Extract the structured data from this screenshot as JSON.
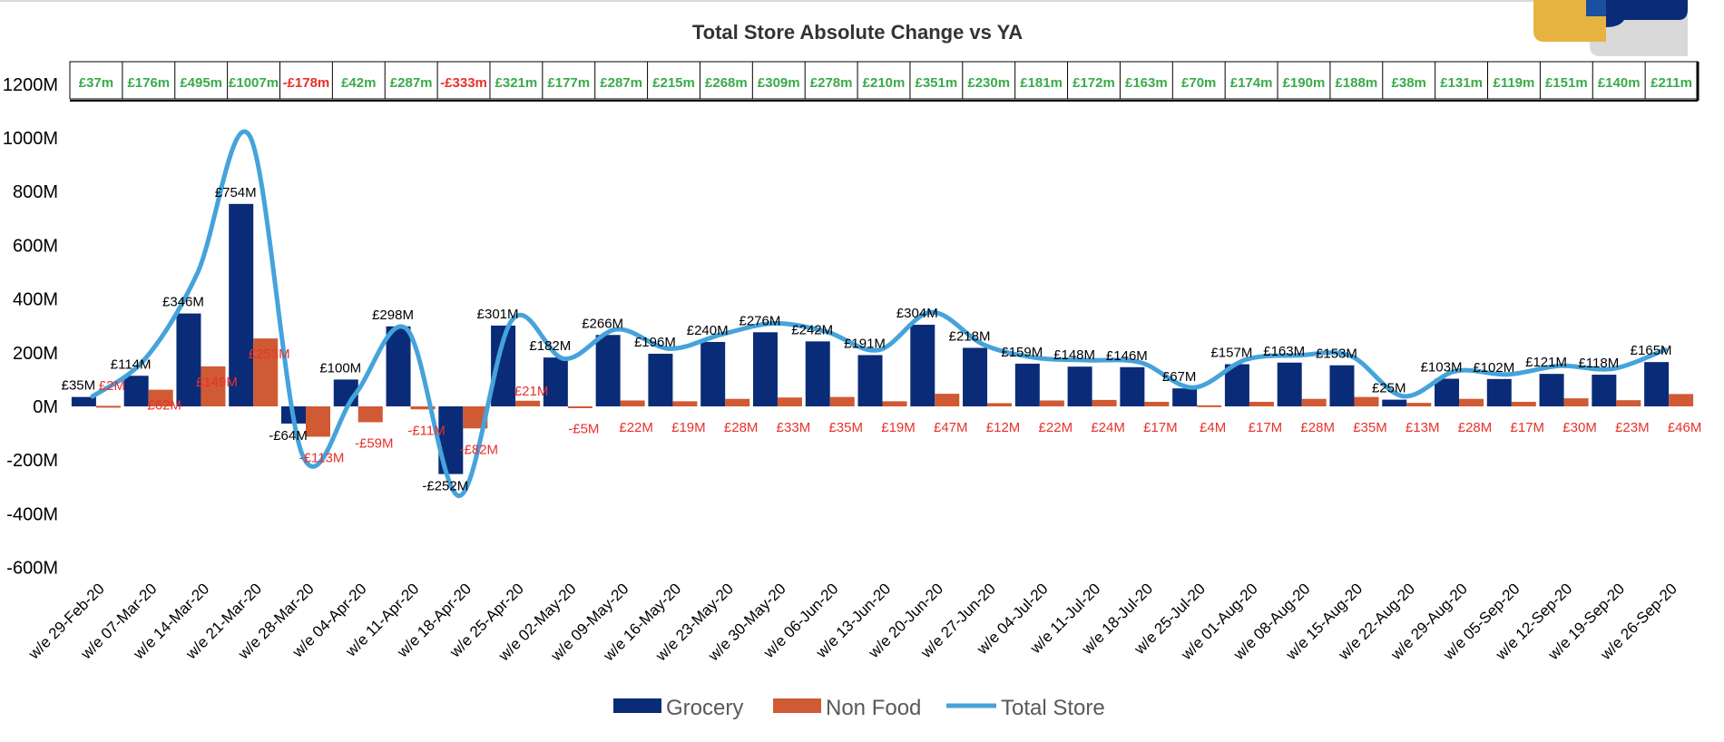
{
  "colors": {
    "grocery": "#0a2b77",
    "nonfood": "#cf5a34",
    "total": "#45a3db",
    "positive_text": "#3aaa4a",
    "negative_text": "#e8312b"
  },
  "chart_data": {
    "type": "bar",
    "title": "Total Store Absolute Change vs YA",
    "xlabel": "",
    "ylabel": "",
    "ylim": [
      -600,
      1200
    ],
    "yticks": [
      "-600M",
      "-400M",
      "-200M",
      "0M",
      "200M",
      "400M",
      "600M",
      "800M",
      "1000M",
      "1200M"
    ],
    "yticks_values": [
      -600,
      -400,
      -200,
      0,
      200,
      400,
      600,
      800,
      1000,
      1200
    ],
    "categories": [
      "w/e 29-Feb-20",
      "w/e 07-Mar-20",
      "w/e 14-Mar-20",
      "w/e 21-Mar-20",
      "w/e 28-Mar-20",
      "w/e 04-Apr-20",
      "w/e 11-Apr-20",
      "w/e 18-Apr-20",
      "w/e 25-Apr-20",
      "w/e 02-May-20",
      "w/e 09-May-20",
      "w/e 16-May-20",
      "w/e 23-May-20",
      "w/e 30-May-20",
      "w/e 06-Jun-20",
      "w/e 13-Jun-20",
      "w/e 20-Jun-20",
      "w/e 27-Jun-20",
      "w/e 04-Jul-20",
      "w/e 11-Jul-20",
      "w/e 18-Jul-20",
      "w/e 25-Jul-20",
      "w/e 01-Aug-20",
      "w/e 08-Aug-20",
      "w/e 15-Aug-20",
      "w/e 22-Aug-20",
      "w/e 29-Aug-20",
      "w/e 05-Sep-20",
      "w/e 12-Sep-20",
      "w/e 19-Sep-20",
      "w/e 26-Sep-20"
    ],
    "series": [
      {
        "name": "Grocery",
        "values": [
          35,
          114,
          346,
          754,
          -64,
          100,
          298,
          -252,
          301,
          182,
          266,
          196,
          240,
          276,
          242,
          191,
          304,
          218,
          159,
          148,
          146,
          67,
          157,
          163,
          153,
          25,
          103,
          102,
          121,
          118,
          165
        ],
        "labels": [
          "£35M",
          "£114M",
          "£346M",
          "£754M",
          "-£64M",
          "£100M",
          "£298M",
          "-£252M",
          "£301M",
          "£182M",
          "£266M",
          "£196M",
          "£240M",
          "£276M",
          "£242M",
          "£191M",
          "£304M",
          "£218M",
          "£159M",
          "£148M",
          "£146M",
          "£67M",
          "£157M",
          "£163M",
          "£153M",
          "£25M",
          "£103M",
          "£102M",
          "£121M",
          "£118M",
          "£165M"
        ]
      },
      {
        "name": "Non Food",
        "values": [
          2,
          62,
          149,
          253,
          -113,
          -59,
          -11,
          -82,
          21,
          -5,
          22,
          19,
          28,
          33,
          35,
          19,
          47,
          12,
          22,
          24,
          17,
          4,
          17,
          28,
          35,
          13,
          28,
          17,
          30,
          23,
          46
        ],
        "labels": [
          "£2M",
          "£62M",
          "£149M",
          "£253M",
          "-£113M",
          "-£59M",
          "-£11M",
          "-£82M",
          "£21M",
          "-£5M",
          "£22M",
          "£19M",
          "£28M",
          "£33M",
          "£35M",
          "£19M",
          "£47M",
          "£12M",
          "£22M",
          "£24M",
          "£17M",
          "£4M",
          "£17M",
          "£28M",
          "£35M",
          "£13M",
          "£28M",
          "£17M",
          "£30M",
          "£23M",
          "£46M"
        ]
      },
      {
        "name": "Total Store",
        "values": [
          37,
          176,
          495,
          1007,
          -178,
          42,
          287,
          -333,
          321,
          177,
          287,
          215,
          268,
          309,
          278,
          210,
          351,
          230,
          181,
          172,
          163,
          70,
          174,
          190,
          188,
          38,
          131,
          119,
          151,
          140,
          211
        ],
        "labels": [
          "£37m",
          "£176m",
          "£495m",
          "£1007m",
          "-£178m",
          "£42m",
          "£287m",
          "-£333m",
          "£321m",
          "£177m",
          "£287m",
          "£215m",
          "£268m",
          "£309m",
          "£278m",
          "£210m",
          "£351m",
          "£230m",
          "£181m",
          "£172m",
          "£163m",
          "£70m",
          "£174m",
          "£190m",
          "£188m",
          "£38m",
          "£131m",
          "£119m",
          "£151m",
          "£140m",
          "£211m"
        ]
      }
    ],
    "legend": {
      "placement": "bottom",
      "items": [
        "Grocery",
        "Non Food",
        "Total Store"
      ]
    },
    "grid": false
  }
}
